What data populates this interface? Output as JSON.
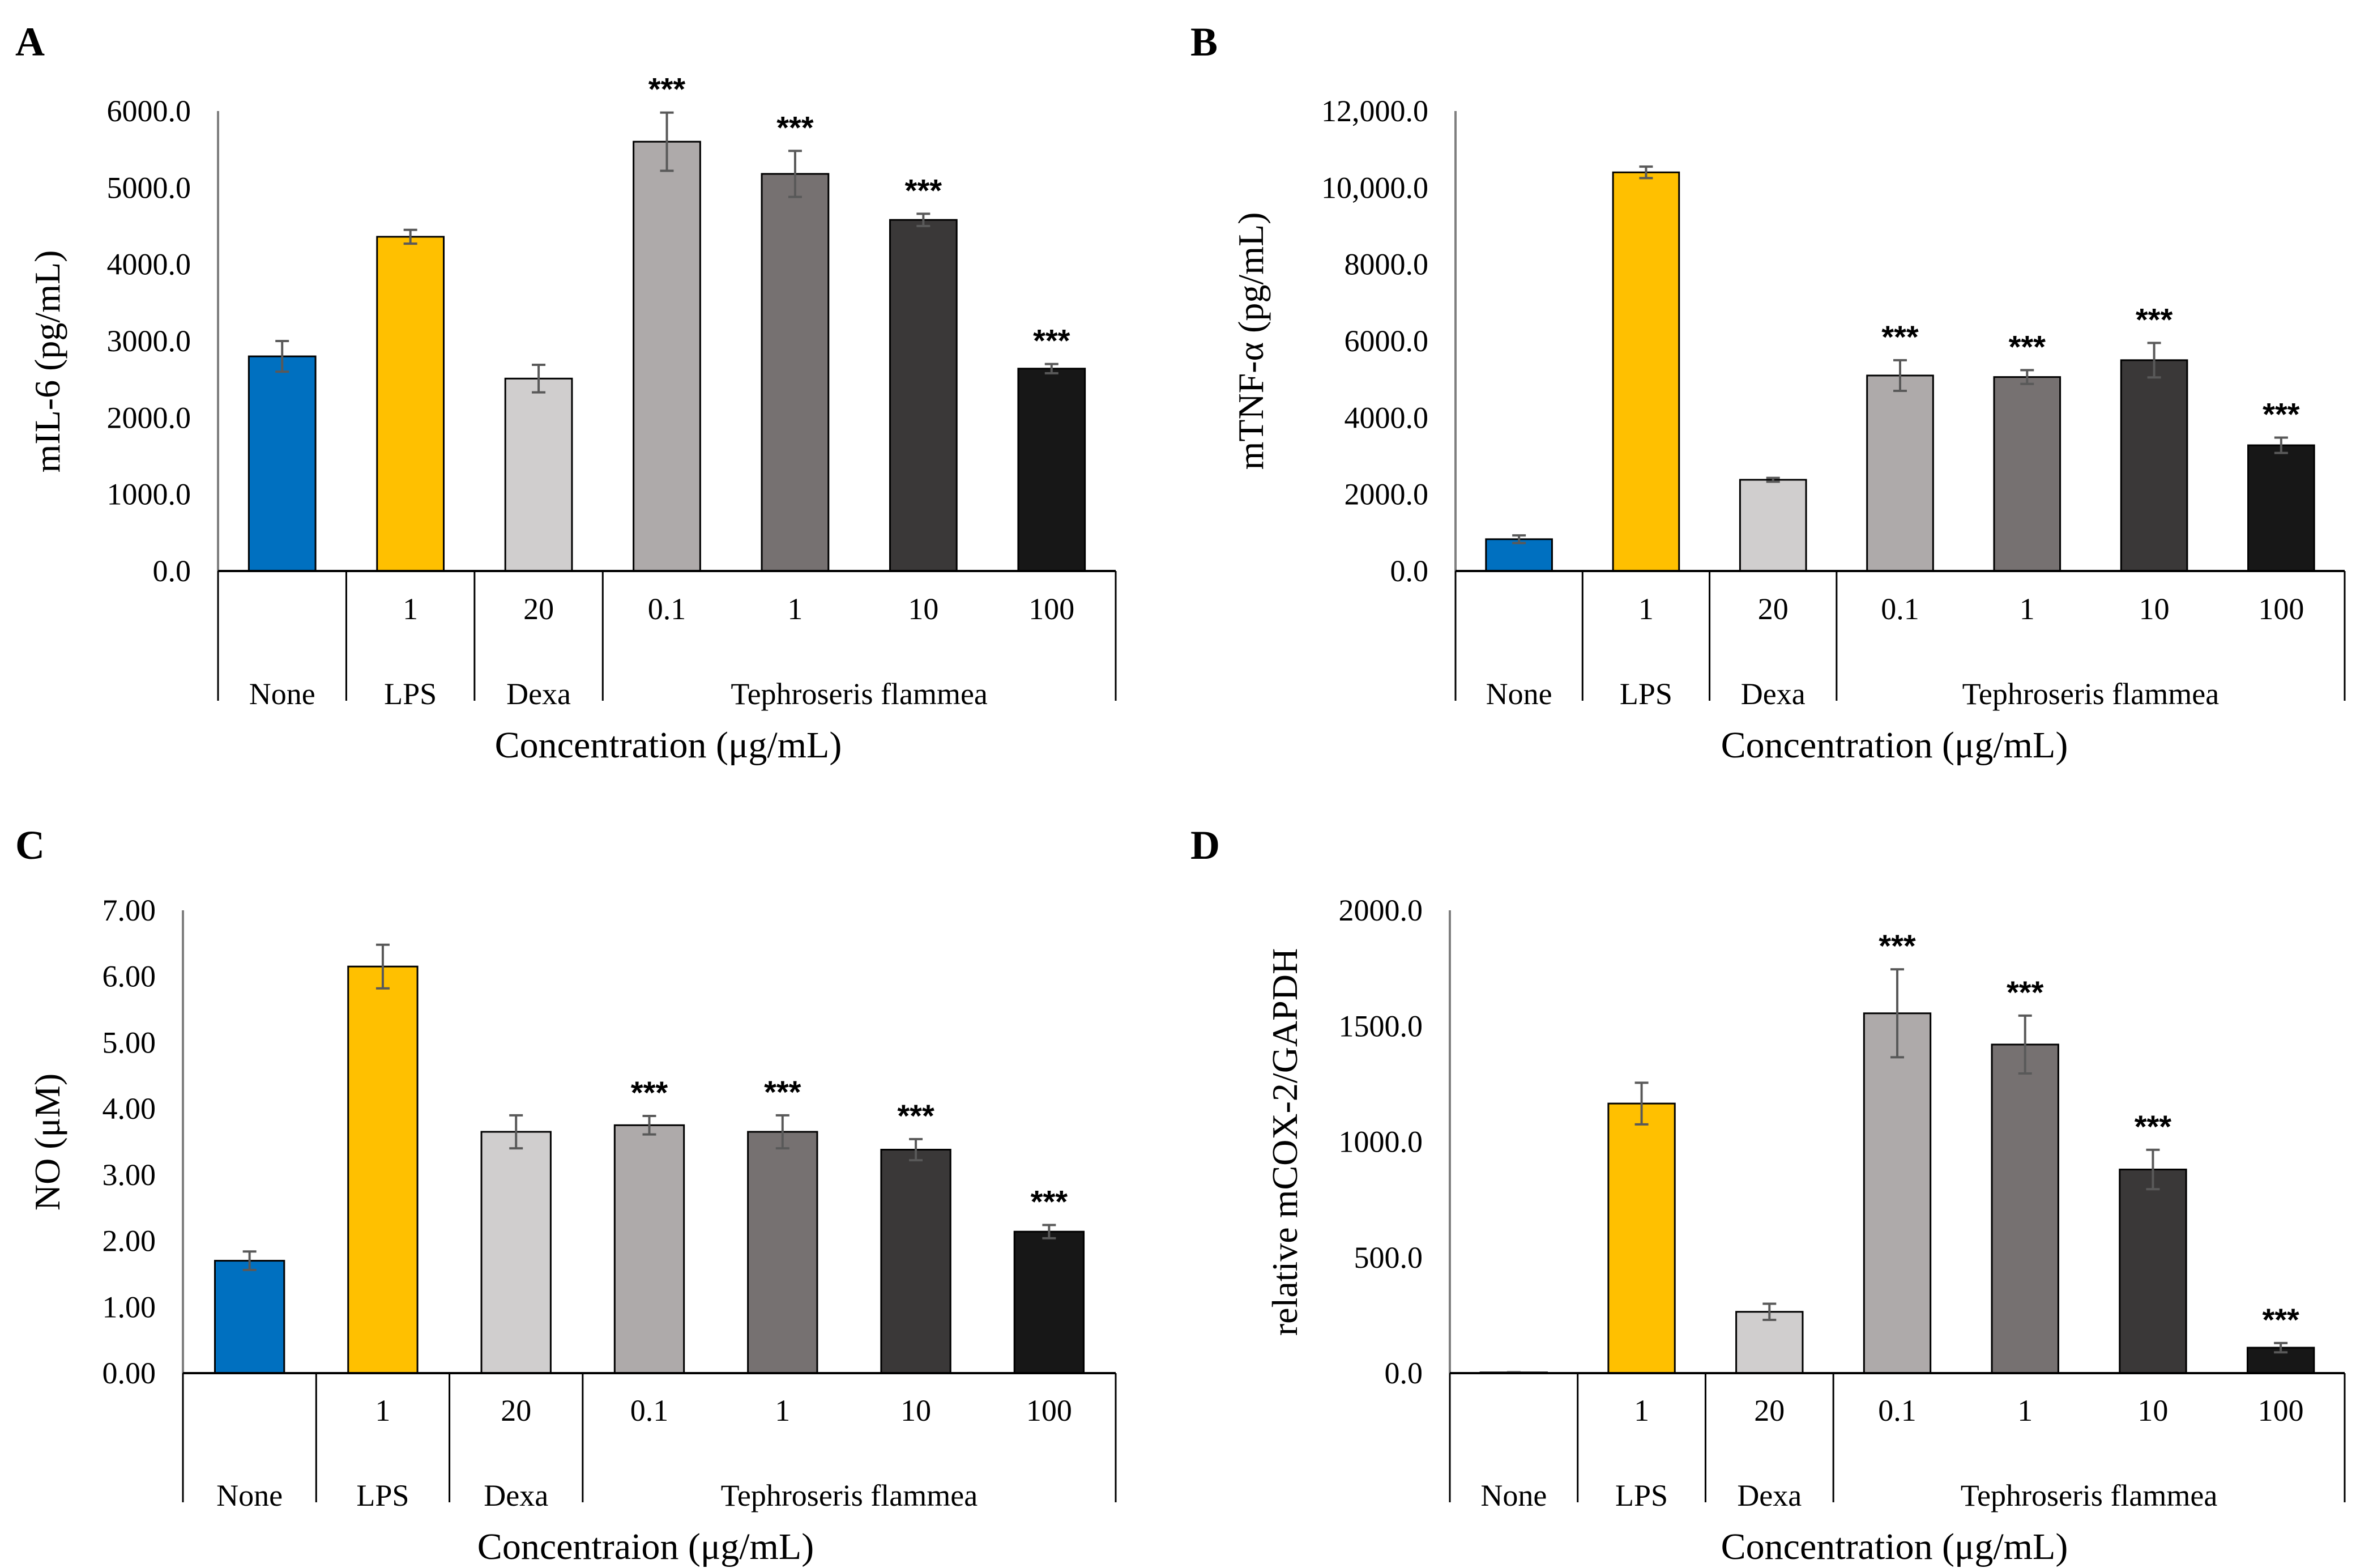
{
  "chart_data": [
    {
      "type": "bar",
      "panel": "A",
      "ylabel": "mIL-6 (pg/mL)",
      "xlabel": "Concentration (μg/mL)",
      "ylim": [
        0,
        6000
      ],
      "yticks": [
        0,
        1000,
        2000,
        3000,
        4000,
        5000,
        6000
      ],
      "ytick_labels": [
        "0.0",
        "1000.0",
        "2000.0",
        "3000.0",
        "4000.0",
        "5000.0",
        "6000.0"
      ],
      "categories": [
        "",
        "1",
        "20",
        "0.1",
        "1",
        "10",
        "100"
      ],
      "groups": [
        {
          "label": "None",
          "span": [
            0,
            0
          ]
        },
        {
          "label": "LPS",
          "span": [
            1,
            1
          ]
        },
        {
          "label": "Dexa",
          "span": [
            2,
            2
          ]
        },
        {
          "label": "Tephroseris flammea",
          "span": [
            3,
            6
          ]
        }
      ],
      "values": [
        2800,
        4360,
        2510,
        5600,
        5180,
        4580,
        2640
      ],
      "errors": [
        200,
        90,
        180,
        380,
        300,
        80,
        60
      ],
      "significance": [
        "",
        "",
        "",
        "***",
        "***",
        "***",
        "***"
      ],
      "colors": [
        "#0070c0",
        "#ffc000",
        "#d0cece",
        "#aeaaaa",
        "#767171",
        "#3a3838",
        "#171717"
      ]
    },
    {
      "type": "bar",
      "panel": "B",
      "ylabel": "mTNF-α (pg/mL)",
      "xlabel": "Concentration (μg/mL)",
      "ylim": [
        0,
        12000
      ],
      "yticks": [
        0,
        2000,
        4000,
        6000,
        8000,
        10000,
        12000
      ],
      "ytick_labels": [
        "0.0",
        "2000.0",
        "4000.0",
        "6000.0",
        "8000.0",
        "10,000.0",
        "12,000.0"
      ],
      "categories": [
        "",
        "1",
        "20",
        "0.1",
        "1",
        "10",
        "100"
      ],
      "groups": [
        {
          "label": "None",
          "span": [
            0,
            0
          ]
        },
        {
          "label": "LPS",
          "span": [
            1,
            1
          ]
        },
        {
          "label": "Dexa",
          "span": [
            2,
            2
          ]
        },
        {
          "label": "Tephroseris flammea",
          "span": [
            3,
            6
          ]
        }
      ],
      "values": [
        830,
        10400,
        2380,
        5100,
        5060,
        5500,
        3280
      ],
      "errors": [
        100,
        150,
        50,
        400,
        180,
        450,
        200
      ],
      "significance": [
        "",
        "",
        "",
        "***",
        "***",
        "***",
        "***"
      ],
      "colors": [
        "#0070c0",
        "#ffc000",
        "#d0cece",
        "#aeaaaa",
        "#767171",
        "#3a3838",
        "#171717"
      ]
    },
    {
      "type": "bar",
      "panel": "C",
      "ylabel": "NO (μM)",
      "xlabel": "Concentraion (μg/mL)",
      "ylim": [
        0,
        7
      ],
      "yticks": [
        0,
        1,
        2,
        3,
        4,
        5,
        6,
        7
      ],
      "ytick_labels": [
        "0.00",
        "1.00",
        "2.00",
        "3.00",
        "4.00",
        "5.00",
        "6.00",
        "7.00"
      ],
      "categories": [
        "",
        "1",
        "20",
        "0.1",
        "1",
        "10",
        "100"
      ],
      "groups": [
        {
          "label": "None",
          "span": [
            0,
            0
          ]
        },
        {
          "label": "LPS",
          "span": [
            1,
            1
          ]
        },
        {
          "label": "Dexa",
          "span": [
            2,
            2
          ]
        },
        {
          "label": "Tephroseris flammea",
          "span": [
            3,
            6
          ]
        }
      ],
      "values": [
        1.7,
        6.15,
        3.65,
        3.75,
        3.65,
        3.38,
        2.14
      ],
      "errors": [
        0.14,
        0.33,
        0.25,
        0.14,
        0.25,
        0.16,
        0.1
      ],
      "significance": [
        "",
        "",
        "",
        "***",
        "***",
        "***",
        "***"
      ],
      "colors": [
        "#0070c0",
        "#ffc000",
        "#d0cece",
        "#aeaaaa",
        "#767171",
        "#3a3838",
        "#171717"
      ]
    },
    {
      "type": "bar",
      "panel": "D",
      "ylabel": "relative mCOX-2/GAPDH",
      "xlabel": "Concentration (μg/mL)",
      "ylim": [
        0,
        2000
      ],
      "yticks": [
        0,
        500,
        1000,
        1500,
        2000
      ],
      "ytick_labels": [
        "0.0",
        "500.0",
        "1000.0",
        "1500.0",
        "2000.0"
      ],
      "categories": [
        "",
        "1",
        "20",
        "0.1",
        "1",
        "10",
        "100"
      ],
      "groups": [
        {
          "label": "None",
          "span": [
            0,
            0
          ]
        },
        {
          "label": "LPS",
          "span": [
            1,
            1
          ]
        },
        {
          "label": "Dexa",
          "span": [
            2,
            2
          ]
        },
        {
          "label": "Tephroseris flammea",
          "span": [
            3,
            6
          ]
        }
      ],
      "values": [
        3,
        1165,
        265,
        1555,
        1420,
        880,
        110
      ],
      "errors": [
        1,
        90,
        35,
        190,
        125,
        85,
        20
      ],
      "significance": [
        "",
        "",
        "",
        "***",
        "***",
        "***",
        "***"
      ],
      "colors": [
        "#0070c0",
        "#ffc000",
        "#d0cece",
        "#aeaaaa",
        "#767171",
        "#3a3838",
        "#171717"
      ]
    }
  ]
}
